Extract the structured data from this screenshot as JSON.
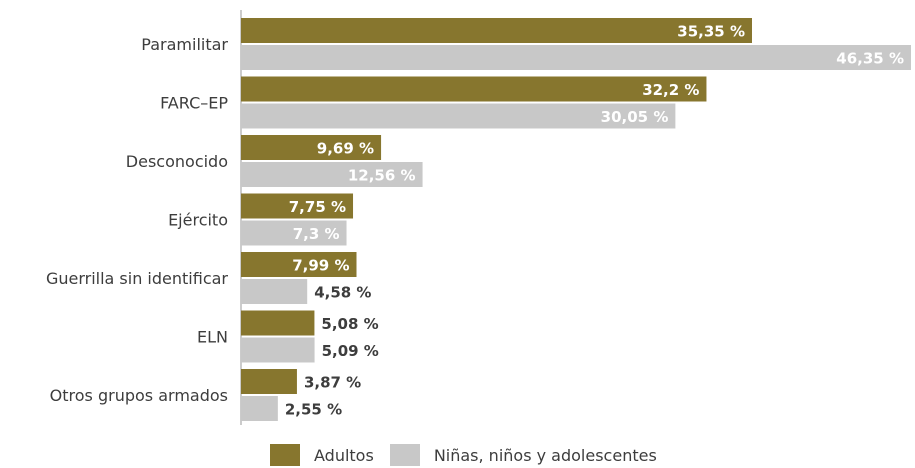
{
  "chart_data": {
    "type": "bar",
    "orientation": "horizontal",
    "categories": [
      "Paramilitar",
      "FARC–EP",
      "Desconocido",
      "Ejército",
      "Guerrilla sin identificar",
      "ELN",
      "Otros grupos armados"
    ],
    "series": [
      {
        "name": "Adultos",
        "color": "#87762e",
        "values": [
          35.35,
          32.2,
          9.69,
          7.75,
          7.99,
          5.08,
          3.87
        ],
        "labels": [
          "35,35 %",
          "32,2 %",
          "9,69 %",
          "7,75 %",
          "7,99 %",
          "5,08 %",
          "3,87 %"
        ]
      },
      {
        "name": "Niñas, niños y adolescentes",
        "color": "#c8c8c8",
        "values": [
          46.35,
          30.05,
          12.56,
          7.3,
          4.58,
          5.09,
          2.55
        ],
        "labels": [
          "46,35 %",
          "30,05 %",
          "12,56 %",
          "7,3 %",
          "4,58 %",
          "5,09 %",
          "2,55 %"
        ]
      }
    ],
    "legend": {
      "position": "bottom",
      "labels": [
        "Adultos",
        "Niñas, niños y adolescentes"
      ]
    },
    "grid": false,
    "xlim": [
      0,
      46.35
    ]
  }
}
